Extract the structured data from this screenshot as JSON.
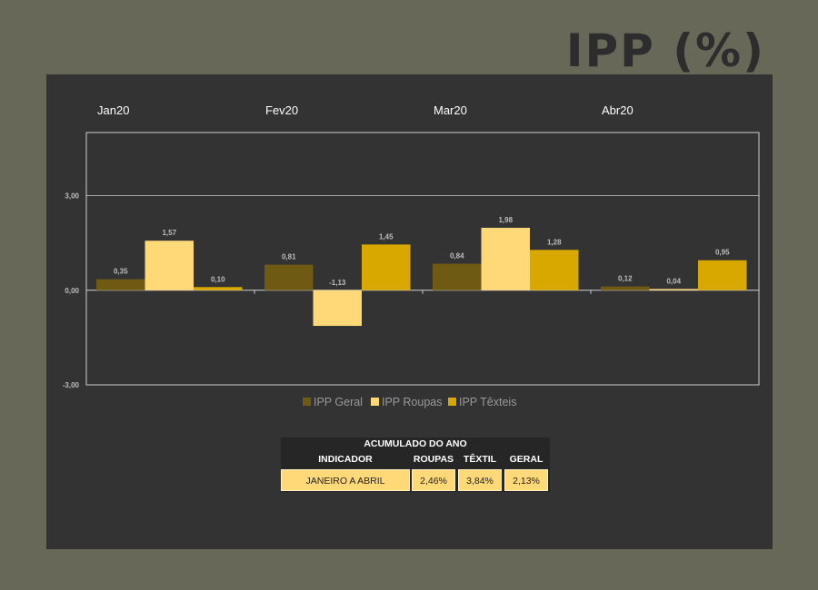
{
  "page_title": "IPP (%)",
  "colors": {
    "background": "#686858",
    "panel": "#333333",
    "ipp_geral": "#6e5a12",
    "ipp_roupas": "#ffd978",
    "ipp_texteis": "#d9a800",
    "grid": "#cfcfcf",
    "label": "#bdbdbd"
  },
  "chart_data": {
    "type": "bar",
    "categories": [
      "Jan20",
      "Fev20",
      "Mar20",
      "Abr20"
    ],
    "series": [
      {
        "name": "IPP Geral",
        "values": [
          0.35,
          0.81,
          0.84,
          0.12
        ],
        "labels": [
          "0,35",
          "0,81",
          "0,84",
          "0,12"
        ]
      },
      {
        "name": "IPP Roupas",
        "values": [
          1.57,
          -1.13,
          1.98,
          0.04
        ],
        "labels": [
          "1,57",
          "-1,13",
          "1,98",
          "0,04"
        ]
      },
      {
        "name": "IPP Têxteis",
        "values": [
          0.1,
          1.45,
          1.28,
          0.95
        ],
        "labels": [
          "0,10",
          "1,45",
          "1,28",
          "0,95"
        ]
      }
    ],
    "yticks": [
      3,
      0,
      -3
    ],
    "ytick_labels": [
      "3,00",
      "0,00",
      "-3,00"
    ],
    "ylim": [
      -3,
      5
    ],
    "legend": "bottom",
    "grid": true
  },
  "table": {
    "title": "ACUMULADO DO ANO",
    "headers": {
      "indicador": "INDICADOR",
      "roupas": "ROUPAS",
      "textil": "TÊXTIL",
      "geral": "GERAL"
    },
    "row": {
      "indicador": "JANEIRO A ABRIL",
      "roupas": "2,46%",
      "textil": "3,84%",
      "geral": "2,13%"
    }
  }
}
